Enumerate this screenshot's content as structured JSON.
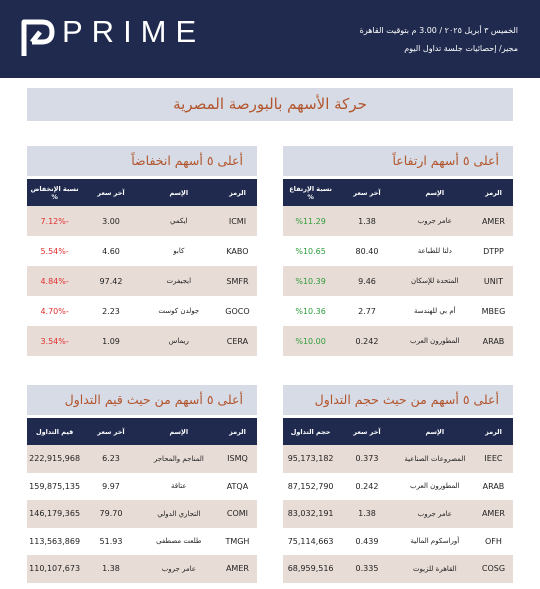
{
  "header": {
    "logo": "PRIME",
    "date": "الخميس ٣ أبريل ٢٠٢٥ / 3.00 م بتوقيت القاهرة",
    "subtitle": "مجير/ إحصائيات جلسة تداول اليوم"
  },
  "title": "حركة الأسهم بالبورصة المصرية",
  "tables": [
    {
      "title": "أعلى ٥ أسهم ارتفاعاً",
      "columns": [
        "الرمز",
        "الإسم",
        "آخر سعر",
        "نسبة الإرتفاع %"
      ],
      "rows": [
        [
          "AMER",
          "عامر جروب",
          "1.38",
          "%11.29"
        ],
        [
          "DTPP",
          "دلتا للطباعة",
          "80.40",
          "%10.65"
        ],
        [
          "UNIT",
          "المتحدة للإسكان",
          "9.46",
          "%10.39"
        ],
        [
          "MBEG",
          "أم بي للهندسة",
          "2.77",
          "%10.36"
        ],
        [
          "ARAB",
          "المطورون العرب",
          "0.242",
          "%10.00"
        ]
      ]
    },
    {
      "title": "أعلى ٥ أسهم انخفاضاً",
      "columns": [
        "الرمز",
        "الإسم",
        "آخر سعر",
        "نسبة الإنخفاض %"
      ],
      "rows": [
        [
          "ICMI",
          "ايكمي",
          "3.00",
          "-7.12%"
        ],
        [
          "KABO",
          "كابو",
          "4.60",
          "-5.54%"
        ],
        [
          "SMFR",
          "ايجيفرت",
          "97.42",
          "-4.84%"
        ],
        [
          "GOCO",
          "جولدن كوست",
          "2.23",
          "-4.70%"
        ],
        [
          "CERA",
          "ريماس",
          "1.09",
          "-3.54%"
        ]
      ]
    },
    {
      "title": "أعلى ٥ أسهم من حيث حجم التداول",
      "columns": [
        "الرمز",
        "الإسم",
        "آخر سعر",
        "حجم التداول"
      ],
      "rows": [
        [
          "IEEC",
          "المصروعات الصناعية",
          "0.373",
          "95,173,182"
        ],
        [
          "ARAB",
          "المطورون العرب",
          "0.242",
          "87,152,790"
        ],
        [
          "AMER",
          "عامر جروب",
          "1.38",
          "83,032,191"
        ],
        [
          "OFH",
          "أوراسكوم المالية",
          "0.439",
          "75,114,663"
        ],
        [
          "COSG",
          "القاهرة للزيوت",
          "0.335",
          "68,959,516"
        ]
      ]
    },
    {
      "title": "أعلى ٥ أسهم من حيث قيم التداول",
      "columns": [
        "الرمز",
        "الإسم",
        "آخر سعر",
        "قيم التداول"
      ],
      "rows": [
        [
          "ISMQ",
          "المناجم والمحاجر",
          "6.23",
          "222,915,968"
        ],
        [
          "ATQA",
          "عتاقة",
          "9.97",
          "159,875,135"
        ],
        [
          "COMI",
          "التجاري الدولي",
          "79.70",
          "146,179,365"
        ],
        [
          "TMGH",
          "طلعت مصطفى",
          "51.93",
          "113,563,869"
        ],
        [
          "AMER",
          "عامر جروب",
          "1.38",
          "110,107,673"
        ]
      ]
    }
  ]
}
